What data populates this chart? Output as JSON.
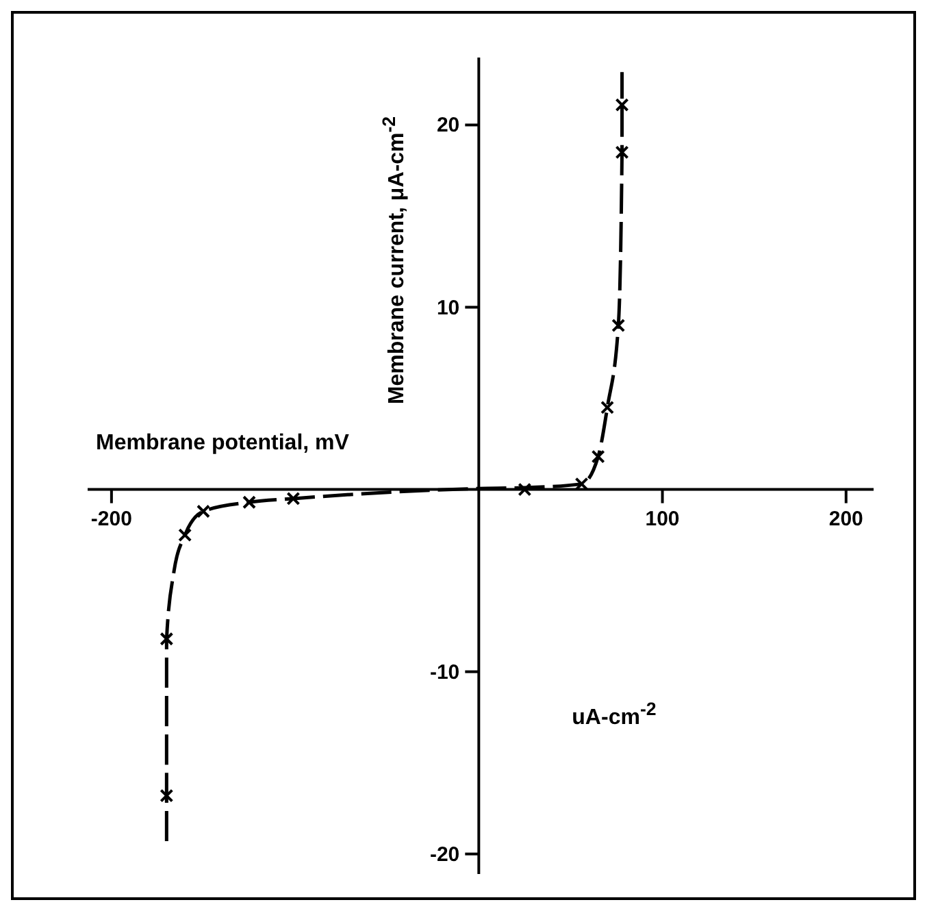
{
  "chart_data": {
    "type": "scatter",
    "xlabel": "Membrane potential, mV",
    "ylabel": "Membrane current,  μA-cm$^{-2}$",
    "annotations": [
      "uA-cm$^{-2}$"
    ],
    "xlim": [
      -213,
      215
    ],
    "ylim": [
      -21.1,
      23.7
    ],
    "xticks": [
      -200,
      100,
      200
    ],
    "yticks": [
      -20,
      -10,
      10,
      20
    ],
    "series": [
      {
        "type": "line",
        "color": "#000000",
        "line_style": "dashed",
        "marker": "none",
        "x": [
          -170,
          -170,
          -170,
          -166,
          -160,
          -150,
          -125,
          -101,
          0,
          25,
          56,
          65,
          70,
          76,
          78,
          78,
          78
        ],
        "values": [
          -19.3,
          -16.8,
          -8.2,
          -4.5,
          -2.5,
          -1.2,
          -0.7,
          -0.5,
          0.05,
          0.1,
          0.3,
          1.8,
          4.5,
          9.0,
          18.5,
          21.1,
          22.9
        ]
      },
      {
        "color": "#000000",
        "marker": "cross",
        "x": [
          -170,
          -170,
          -160,
          -150,
          -125,
          -101,
          25,
          56,
          65,
          70,
          76,
          78,
          78
        ],
        "values": [
          -16.8,
          -8.2,
          -2.5,
          -1.2,
          -0.7,
          -0.5,
          0.0,
          0.3,
          1.8,
          4.5,
          9.0,
          18.5,
          21.1
        ]
      }
    ]
  }
}
